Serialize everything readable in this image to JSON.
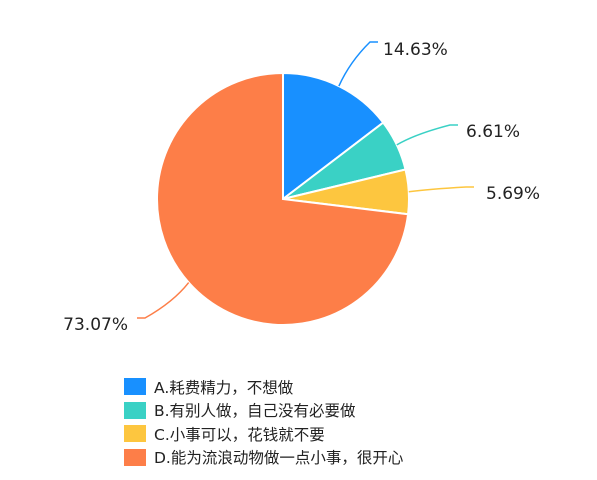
{
  "chart_data": {
    "type": "pie",
    "title": "",
    "categories": [
      "A.耗费精力，不想做",
      "B.有别人做，自己没有必要做",
      "C.小事可以，花钱就不要",
      "D.能为流浪动物做一点小事，很开心"
    ],
    "values": [
      14.63,
      6.61,
      5.69,
      73.07
    ],
    "value_labels": [
      "14.63%",
      "6.61%",
      "5.69%",
      "73.07%"
    ],
    "colors": [
      "#1890ff",
      "#3ad1c5",
      "#fdc63f",
      "#fd7e48"
    ],
    "start_angle": "12 o'clock",
    "direction": "clockwise",
    "legend_position": "bottom"
  }
}
